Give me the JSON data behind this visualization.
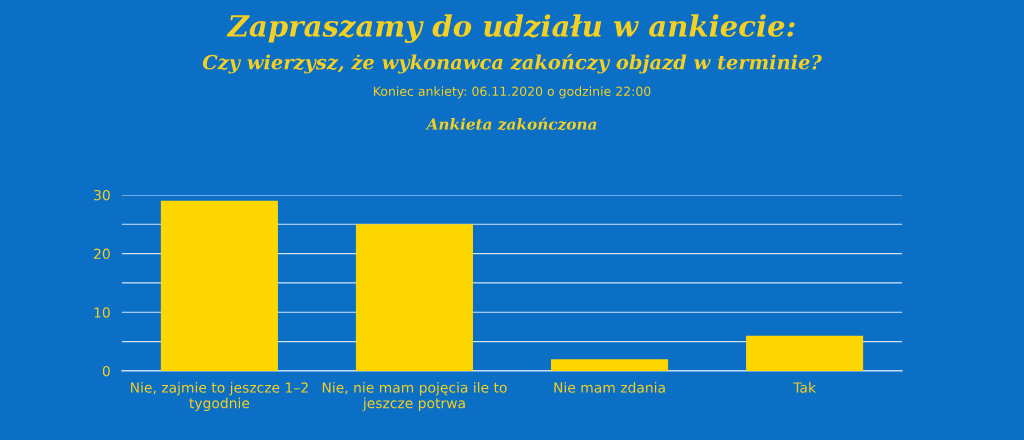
{
  "chart_data": {
    "type": "bar",
    "title": "Zapraszamy do udziału w ankiecie:",
    "subtitle": "Czy wierzysz, że wykonawca zakończy objazd w terminie?",
    "annotations": [
      "Koniec ankiety: 06.11.2020 o godzinie 22:00",
      "Ankieta zakończona"
    ],
    "categories": [
      "Nie, zajmie to jeszcze 1–2\ntygodnie",
      "Nie, nie mam pojęcia ile to\njeszcze potrwa",
      "Nie mam zdania",
      "Tak"
    ],
    "values": [
      29,
      25,
      2,
      6
    ],
    "color": "#ffd700",
    "ylim": [
      0,
      30
    ],
    "yticks": [
      0,
      {
        "value": 5,
        "label": null
      },
      10,
      {
        "value": 15,
        "label": null
      },
      20,
      {
        "value": 25,
        "label": null
      },
      30
    ],
    "grid": "y",
    "legend": false
  }
}
